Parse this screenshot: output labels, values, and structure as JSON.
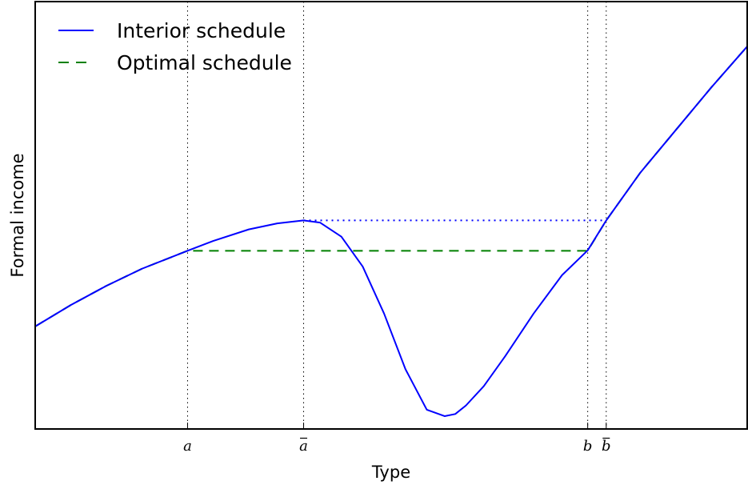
{
  "chart_data": {
    "type": "line",
    "xlabel": "Type",
    "ylabel": "Formal income",
    "xlim": [
      0,
      1
    ],
    "ylim": [
      0,
      1
    ],
    "xticks_shown": false,
    "yticks_shown": false,
    "x_markers": [
      {
        "label": "a",
        "x": 0.214,
        "bar": false
      },
      {
        "label": "a",
        "x": 0.377,
        "bar": true
      },
      {
        "label": "b",
        "x": 0.776,
        "bar": false
      },
      {
        "label": "b",
        "x": 0.802,
        "bar": true
      }
    ],
    "legend": {
      "position": "top-left",
      "entries": [
        {
          "label": "Interior schedule",
          "color": "#0000ff",
          "style": "solid"
        },
        {
          "label": "Optimal schedule",
          "color": "#008000",
          "style": "dashed"
        }
      ]
    },
    "series": [
      {
        "name": "Interior schedule",
        "color": "#0000ff",
        "style": "solid",
        "x": [
          0,
          0.05,
          0.1,
          0.15,
          0.214,
          0.25,
          0.3,
          0.34,
          0.377,
          0.4,
          0.43,
          0.46,
          0.49,
          0.52,
          0.55,
          0.575,
          0.59,
          0.605,
          0.63,
          0.66,
          0.7,
          0.74,
          0.776,
          0.802,
          0.85,
          0.9,
          0.95,
          1.0
        ],
        "values": [
          0.24,
          0.29,
          0.335,
          0.375,
          0.417,
          0.44,
          0.467,
          0.481,
          0.488,
          0.483,
          0.45,
          0.38,
          0.27,
          0.14,
          0.045,
          0.03,
          0.035,
          0.055,
          0.1,
          0.17,
          0.27,
          0.36,
          0.418,
          0.488,
          0.6,
          0.7,
          0.8,
          0.895
        ]
      },
      {
        "name": "Optimal schedule",
        "color": "#008000",
        "style": "dashed",
        "x": [
          0,
          0.05,
          0.1,
          0.15,
          0.214,
          0.776,
          0.802,
          0.85,
          0.9,
          0.95,
          1.0
        ],
        "values": [
          0.24,
          0.29,
          0.335,
          0.375,
          0.417,
          0.417,
          0.488,
          0.6,
          0.7,
          0.8,
          0.895
        ]
      }
    ],
    "reference_lines": [
      {
        "x_from": 0.377,
        "x_to": 0.802,
        "y": 0.488,
        "color": "#0000ff",
        "style": "dotted"
      }
    ]
  }
}
